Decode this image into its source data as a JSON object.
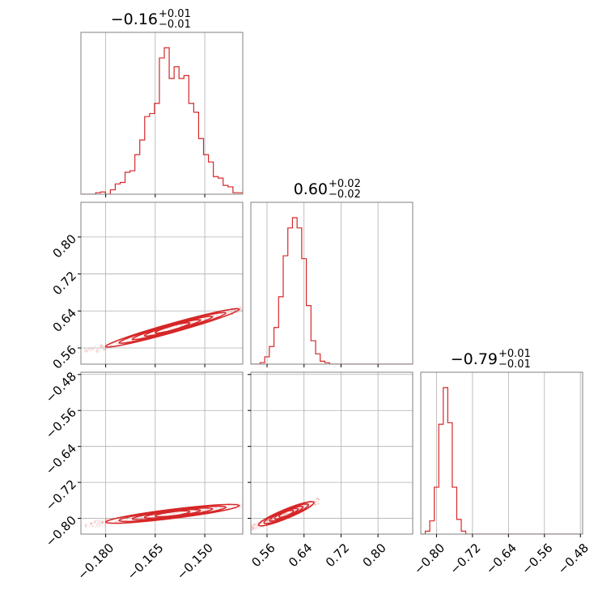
{
  "chart_data": {
    "type": "corner",
    "color": "#d62728",
    "grid": true,
    "parameters": [
      {
        "title_value": "−0.16",
        "title_plus": "+0.01",
        "title_minus": "−0.01",
        "range": [
          -0.1875,
          -0.1385
        ],
        "ticks": [
          -0.18,
          -0.165,
          -0.15
        ],
        "tick_labels": [
          "−0.180",
          "−0.165",
          "−0.150"
        ],
        "hist_bins": [
          0,
          0,
          0,
          0.01,
          0.015,
          0,
          0.03,
          0.07,
          0.08,
          0.15,
          0.16,
          0.27,
          0.37,
          0.53,
          0.55,
          0.62,
          0.93,
          1.0,
          0.79,
          0.87,
          0.79,
          0.81,
          0.62,
          0.56,
          0.38,
          0.27,
          0.22,
          0.12,
          0.11,
          0.06,
          0.05,
          0.01,
          0.01
        ]
      },
      {
        "title_value": "0.60",
        "title_plus": "+0.02",
        "title_minus": "−0.02",
        "range": [
          0.525,
          0.875
        ],
        "ticks": [
          0.56,
          0.64,
          0.72,
          0.8
        ],
        "tick_labels": [
          "0.56",
          "0.64",
          "0.72",
          "0.80"
        ],
        "hist_bins": [
          0,
          0,
          0.01,
          0.05,
          0.12,
          0.25,
          0.46,
          0.74,
          0.93,
          1.0,
          0.93,
          0.72,
          0.4,
          0.16,
          0.07,
          0.02,
          0.01,
          0,
          0,
          0,
          0,
          0,
          0,
          0,
          0,
          0,
          0,
          0,
          0,
          0,
          0,
          0,
          0,
          0,
          0
        ]
      },
      {
        "title_value": "−0.79",
        "title_plus": "+0.01",
        "title_minus": "−0.01",
        "range": [
          -0.835,
          -0.475
        ],
        "ticks": [
          -0.8,
          -0.72,
          -0.64,
          -0.56,
          -0.48
        ],
        "tick_labels": [
          "−0.80",
          "−0.72",
          "−0.64",
          "−0.56",
          "−0.48"
        ],
        "hist_bins": [
          0,
          0.02,
          0.09,
          0.32,
          0.75,
          1.0,
          0.76,
          0.32,
          0.1,
          0.02,
          0,
          0,
          0,
          0,
          0,
          0,
          0,
          0,
          0,
          0,
          0,
          0,
          0,
          0,
          0,
          0,
          0,
          0,
          0,
          0,
          0,
          0,
          0,
          0,
          0,
          0
        ]
      }
    ],
    "correlations": [
      {
        "x_param": 0,
        "y_param": 1,
        "relation": [
          [
            -0.184,
            0.555
          ],
          [
            -0.17,
            0.572
          ],
          [
            -0.16,
            0.595
          ],
          [
            -0.15,
            0.617
          ],
          [
            -0.14,
            0.643
          ]
        ]
      },
      {
        "x_param": 0,
        "y_param": 2,
        "relation": [
          [
            -0.184,
            -0.812
          ],
          [
            -0.17,
            -0.802
          ],
          [
            -0.16,
            -0.793
          ],
          [
            -0.15,
            -0.784
          ],
          [
            -0.14,
            -0.772
          ]
        ]
      },
      {
        "x_param": 1,
        "y_param": 2,
        "relation": [
          [
            0.53,
            -0.82
          ],
          [
            0.56,
            -0.805
          ],
          [
            0.6,
            -0.79
          ],
          [
            0.64,
            -0.775
          ],
          [
            0.66,
            -0.765
          ]
        ]
      }
    ]
  }
}
